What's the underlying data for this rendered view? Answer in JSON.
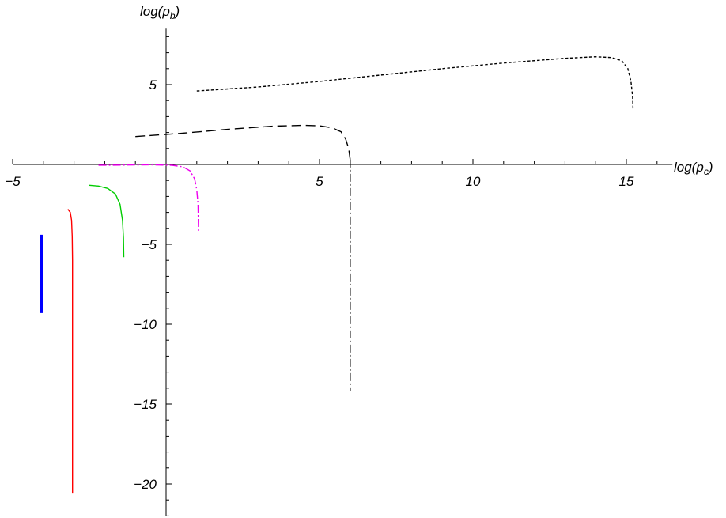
{
  "chart_data": {
    "type": "line",
    "axes_style": "origin-crossing",
    "xlabel": {
      "base": "log(p",
      "sub": "c",
      "close": ")"
    },
    "ylabel": {
      "base": "log(p",
      "sub": "b",
      "close": ")"
    },
    "xlim": [
      -5,
      16.5
    ],
    "ylim": [
      -22,
      8.5
    ],
    "x_major_ticks": [
      -5,
      5,
      10,
      15
    ],
    "y_major_ticks": [
      -20,
      -15,
      -10,
      -5,
      5
    ],
    "x_tick_labels": [
      "−5",
      "5",
      "10",
      "15"
    ],
    "y_tick_labels": [
      "−20",
      "−15",
      "−10",
      "−5",
      "5"
    ],
    "x_minor_step": 1,
    "y_minor_step": 1,
    "grid": false,
    "series": [
      {
        "color": "#0000ff",
        "style": "solid",
        "weight": "thick",
        "points": [
          [
            -4.05,
            -4.4
          ],
          [
            -4.05,
            -9.3
          ]
        ]
      },
      {
        "color": "#ff0000",
        "style": "solid",
        "weight": "normal",
        "points": [
          [
            -3.2,
            -2.8
          ],
          [
            -3.12,
            -3.0
          ],
          [
            -3.08,
            -3.5
          ],
          [
            -3.06,
            -4.5
          ],
          [
            -3.05,
            -6
          ],
          [
            -3.05,
            -10
          ],
          [
            -3.05,
            -15
          ],
          [
            -3.05,
            -20.6
          ]
        ]
      },
      {
        "color": "#00cc00",
        "style": "solid",
        "weight": "normal",
        "points": [
          [
            -2.5,
            -1.3
          ],
          [
            -2.2,
            -1.35
          ],
          [
            -1.9,
            -1.5
          ],
          [
            -1.65,
            -1.85
          ],
          [
            -1.5,
            -2.5
          ],
          [
            -1.42,
            -3.5
          ],
          [
            -1.39,
            -4.6
          ],
          [
            -1.38,
            -5.8
          ]
        ]
      },
      {
        "color": "#ee00ee",
        "style": "dashdot",
        "weight": "normal",
        "points": [
          [
            -2.2,
            -0.05
          ],
          [
            -1.5,
            -0.04
          ],
          [
            -0.5,
            -0.02
          ],
          [
            0.2,
            -0.05
          ],
          [
            0.55,
            -0.15
          ],
          [
            0.78,
            -0.4
          ],
          [
            0.93,
            -0.9
          ],
          [
            1.0,
            -1.6
          ],
          [
            1.04,
            -2.5
          ],
          [
            1.05,
            -3.4
          ],
          [
            1.06,
            -4.3
          ]
        ]
      },
      {
        "color": "#000000",
        "style": "longdash",
        "weight": "normal",
        "points": [
          [
            -1.0,
            1.75
          ],
          [
            0.5,
            1.95
          ],
          [
            2.0,
            2.2
          ],
          [
            3.5,
            2.4
          ],
          [
            4.5,
            2.45
          ],
          [
            5.0,
            2.42
          ],
          [
            5.4,
            2.3
          ],
          [
            5.7,
            2.05
          ],
          [
            5.85,
            1.6
          ],
          [
            5.95,
            1.0
          ],
          [
            6.0,
            0.3
          ]
        ]
      },
      {
        "color": "#000000",
        "style": "dashdot",
        "weight": "normal",
        "points": [
          [
            6.0,
            0.3
          ],
          [
            6.0,
            -5
          ],
          [
            6.0,
            -10
          ],
          [
            6.0,
            -14.2
          ]
        ]
      },
      {
        "color": "#000000",
        "style": "shortdash",
        "weight": "normal",
        "points": [
          [
            1.0,
            4.6
          ],
          [
            3.0,
            4.85
          ],
          [
            5.0,
            5.2
          ],
          [
            7.0,
            5.6
          ],
          [
            9.0,
            6.0
          ],
          [
            11.0,
            6.35
          ],
          [
            13.0,
            6.65
          ],
          [
            14.0,
            6.75
          ],
          [
            14.5,
            6.7
          ],
          [
            14.85,
            6.5
          ],
          [
            15.05,
            6.0
          ],
          [
            15.15,
            5.2
          ],
          [
            15.2,
            4.3
          ],
          [
            15.22,
            3.4
          ]
        ]
      }
    ]
  }
}
